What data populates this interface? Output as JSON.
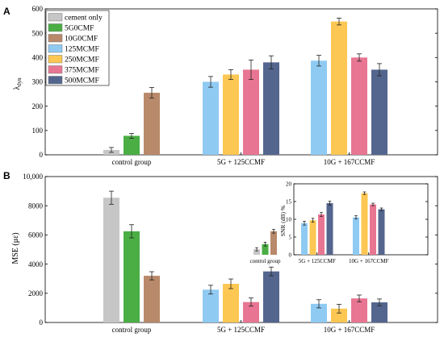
{
  "panels": [
    {
      "letter": "A"
    },
    {
      "letter": "B"
    }
  ],
  "chart_data": [
    {
      "type": "bar",
      "panel": "A",
      "ylabel": "λdyn",
      "ylabel_main": "λ",
      "ylabel_sub": "dyn",
      "ylim": [
        0,
        600
      ],
      "yticks": [
        "0",
        "100",
        "200",
        "300",
        "400",
        "500",
        "600"
      ],
      "categories": [
        "control group",
        "5G + 125CCMF",
        "10G + 167CCMF"
      ],
      "legend_position": "top-left",
      "series": [
        {
          "name": "cement only",
          "color": "#c6c6c6",
          "groups": [
            {
              "g": 0,
              "slot": 0,
              "value": 20,
              "err": 10
            }
          ]
        },
        {
          "name": "5G0CMF",
          "color": "#4aae44",
          "groups": [
            {
              "g": 0,
              "slot": 1,
              "value": 78,
              "err": 10
            }
          ]
        },
        {
          "name": "10G0CMF",
          "color": "#b8896a",
          "groups": [
            {
              "g": 0,
              "slot": 2,
              "value": 255,
              "err": 22
            }
          ]
        },
        {
          "name": "125MCMF",
          "color": "#8fcaf2",
          "groups": [
            {
              "g": 1,
              "slot": 0,
              "value": 300,
              "err": 22
            },
            {
              "g": 2,
              "slot": 0,
              "value": 387,
              "err": 22
            }
          ]
        },
        {
          "name": "250MCMF",
          "color": "#fcc752",
          "groups": [
            {
              "g": 1,
              "slot": 1,
              "value": 330,
              "err": 20
            },
            {
              "g": 2,
              "slot": 1,
              "value": 548,
              "err": 14
            }
          ]
        },
        {
          "name": "375MCMF",
          "color": "#e87693",
          "groups": [
            {
              "g": 1,
              "slot": 2,
              "value": 350,
              "err": 40
            },
            {
              "g": 2,
              "slot": 2,
              "value": 400,
              "err": 15
            }
          ]
        },
        {
          "name": "500MCMF",
          "color": "#54668e",
          "groups": [
            {
              "g": 1,
              "slot": 3,
              "value": 380,
              "err": 27
            },
            {
              "g": 2,
              "slot": 3,
              "value": 350,
              "err": 25
            }
          ]
        }
      ]
    },
    {
      "type": "bar",
      "panel": "B",
      "ylabel": "MSE (με)",
      "ylim": [
        0,
        10000
      ],
      "yticks": [
        "0",
        "2000",
        "4000",
        "6000",
        "8000",
        "10,000"
      ],
      "categories": [
        "control group",
        "5G + 125CCMF",
        "10G + 167CCMF"
      ],
      "series": [
        {
          "name": "cement only",
          "color": "#c6c6c6",
          "groups": [
            {
              "g": 0,
              "slot": 0,
              "value": 8550,
              "err": 450
            }
          ]
        },
        {
          "name": "5G0CMF",
          "color": "#4aae44",
          "groups": [
            {
              "g": 0,
              "slot": 1,
              "value": 6250,
              "err": 450
            }
          ]
        },
        {
          "name": "10G0CMF",
          "color": "#b8896a",
          "groups": [
            {
              "g": 0,
              "slot": 2,
              "value": 3200,
              "err": 280
            }
          ]
        },
        {
          "name": "125MCMF",
          "color": "#8fcaf2",
          "groups": [
            {
              "g": 1,
              "slot": 0,
              "value": 2250,
              "err": 300
            },
            {
              "g": 2,
              "slot": 0,
              "value": 1280,
              "err": 280
            }
          ]
        },
        {
          "name": "250MCMF",
          "color": "#fcc752",
          "groups": [
            {
              "g": 1,
              "slot": 1,
              "value": 2650,
              "err": 330
            },
            {
              "g": 2,
              "slot": 1,
              "value": 950,
              "err": 300
            }
          ]
        },
        {
          "name": "375MCMF",
          "color": "#e87693",
          "groups": [
            {
              "g": 1,
              "slot": 2,
              "value": 1400,
              "err": 280
            },
            {
              "g": 2,
              "slot": 2,
              "value": 1650,
              "err": 230
            }
          ]
        },
        {
          "name": "500MCMF",
          "color": "#54668e",
          "groups": [
            {
              "g": 1,
              "slot": 3,
              "value": 3500,
              "err": 300
            },
            {
              "g": 2,
              "slot": 3,
              "value": 1380,
              "err": 230
            }
          ]
        }
      ]
    },
    {
      "type": "bar",
      "panel": "B-inset",
      "ylabel": "SNR (dB) %",
      "ylim": [
        0,
        22
      ],
      "yticks": [
        "0",
        "5",
        "10",
        "15",
        "20"
      ],
      "categories": [
        "control group",
        "5G + 125CCMF",
        "10G + 167CCMF"
      ],
      "series": [
        {
          "name": "cement only",
          "color": "#c6c6c6",
          "groups": [
            {
              "g": 0,
              "slot": 0,
              "value": 1.7,
              "err": 0.5
            }
          ]
        },
        {
          "name": "5G0CMF",
          "color": "#4aae44",
          "groups": [
            {
              "g": 0,
              "slot": 1,
              "value": 3.3,
              "err": 0.6
            }
          ]
        },
        {
          "name": "10G0CMF",
          "color": "#b8896a",
          "groups": [
            {
              "g": 0,
              "slot": 2,
              "value": 7.3,
              "err": 0.6
            }
          ]
        },
        {
          "name": "125MCMF",
          "color": "#8fcaf2",
          "groups": [
            {
              "g": 1,
              "slot": 0,
              "value": 9.8,
              "err": 0.6
            },
            {
              "g": 2,
              "slot": 0,
              "value": 11.6,
              "err": 0.5
            }
          ]
        },
        {
          "name": "250MCMF",
          "color": "#fcc752",
          "groups": [
            {
              "g": 1,
              "slot": 1,
              "value": 10.7,
              "err": 0.6
            },
            {
              "g": 2,
              "slot": 1,
              "value": 19.1,
              "err": 0.4
            }
          ]
        },
        {
          "name": "375MCMF",
          "color": "#e87693",
          "groups": [
            {
              "g": 1,
              "slot": 2,
              "value": 12.5,
              "err": 0.6
            },
            {
              "g": 2,
              "slot": 2,
              "value": 15.6,
              "err": 0.4
            }
          ]
        },
        {
          "name": "500MCMF",
          "color": "#54668e",
          "groups": [
            {
              "g": 1,
              "slot": 3,
              "value": 16.0,
              "err": 0.6
            },
            {
              "g": 2,
              "slot": 3,
              "value": 14.1,
              "err": 0.4
            }
          ]
        }
      ]
    }
  ]
}
